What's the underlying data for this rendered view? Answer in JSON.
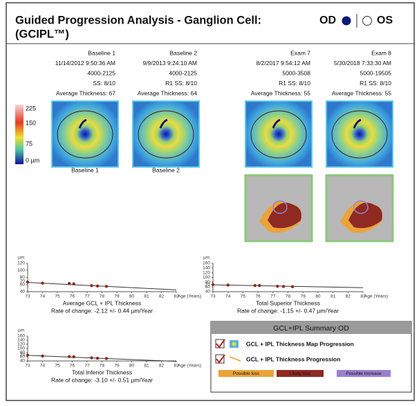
{
  "header": {
    "title": "Guided Progression Analysis - Ganglion Cell:",
    "subtitle": "(GCIPL™)",
    "od": "OD",
    "os": "OS"
  },
  "color_scale": [
    "225",
    "150",
    "75",
    "0 µm"
  ],
  "exams": [
    {
      "name": "Baseline 1",
      "datetime": "11/14/2012 9:50:36 AM",
      "id": "4000-2125",
      "signal": "SS: 8/10",
      "average": "Average Thickness: 67"
    },
    {
      "name": "Baseline 2",
      "datetime": "9/9/2013 9:24:10 AM",
      "id": "4000-2125",
      "signal": "R1 SS: 8/10",
      "average": "Average Thickness: 64"
    },
    {
      "name": "Exam 7",
      "datetime": "8/2/2017 9:54:12 AM",
      "id": "5000-3508",
      "signal": "R1 SS: 8/10",
      "average": "Average Thickness: 55"
    },
    {
      "name": "Exam 8",
      "datetime": "5/30/2018 7:33:30 AM",
      "id": "5000-19505",
      "signal": "R1 SS: 8/10",
      "average": "Average Thickness: 55"
    }
  ],
  "map_captions": [
    "Baseline 1",
    "Baseline 2"
  ],
  "charts": [
    {
      "type": "line",
      "title": "Average GCL + IPL Thickness",
      "rate": "Rate of change: -2.12 +/- 0.44 µm/Year",
      "ylabel": "µm",
      "xlabel": "Age (Years)",
      "xlim": [
        73,
        83
      ],
      "xticks": [
        73,
        74,
        75,
        76,
        77,
        78,
        79,
        80,
        81,
        82,
        83
      ],
      "ylim": [
        40,
        120
      ],
      "yticks": [
        40,
        60,
        70,
        80,
        100,
        120
      ],
      "color": "#8b2a1e",
      "x": [
        73,
        74,
        75.8,
        76.1,
        77.3,
        77.7,
        78.3
      ],
      "y": [
        67,
        64,
        63,
        62,
        57,
        56,
        55
      ],
      "trend_x": [
        73,
        83
      ],
      "trend_y": [
        66,
        45
      ]
    },
    {
      "type": "line",
      "title": "Total Superior Thickness",
      "rate": "Rate of change: -1.15 +/- 0.47 µm/Year",
      "ylabel": "µm",
      "xlabel": "Age (Years)",
      "xlim": [
        73,
        83
      ],
      "xticks": [
        73,
        74,
        75,
        76,
        77,
        78,
        79,
        80,
        81,
        82,
        83
      ],
      "ylim": [
        40,
        160
      ],
      "yticks": [
        40,
        60,
        70,
        80,
        100,
        120,
        140,
        160
      ],
      "color": "#8b2a1e",
      "x": [
        73,
        74,
        75.8,
        76.1,
        77.3,
        77.7,
        78.3
      ],
      "y": [
        70,
        68,
        66,
        66,
        63,
        62,
        61
      ],
      "trend_x": [
        73,
        83
      ],
      "trend_y": [
        69,
        57
      ]
    },
    {
      "type": "line",
      "title": "Total Inferior Thickness",
      "rate": "Rate of change: -3.10 +/- 0.51 µm/Year",
      "ylabel": "µm",
      "xlabel": "Age (Years)",
      "xlim": [
        73,
        83
      ],
      "xticks": [
        73,
        74,
        75,
        76,
        77,
        78,
        79,
        80,
        81,
        82,
        83
      ],
      "ylim": [
        40,
        160
      ],
      "yticks": [
        40,
        60,
        70,
        80,
        100,
        120,
        140,
        160
      ],
      "color": "#8b2a1e",
      "x": [
        73,
        74,
        75.8,
        76.1,
        77.3,
        77.7,
        78.3
      ],
      "y": [
        68,
        64,
        61,
        60,
        55,
        53,
        52
      ],
      "trend_x": [
        73,
        83
      ],
      "trend_y": [
        67,
        38
      ]
    }
  ],
  "summary": {
    "title": "GCL+IPL Summary OD",
    "rows": [
      "GCL + IPL Thickness Map Progression",
      "GCL + IPL Thickness Progression"
    ],
    "legend": [
      {
        "label": "Possible loss",
        "color": "#eba33a"
      },
      {
        "label": "Likely loss",
        "color": "#8e2a22"
      },
      {
        "label": "Possible Increase",
        "color": "#9b7fd0"
      }
    ]
  }
}
